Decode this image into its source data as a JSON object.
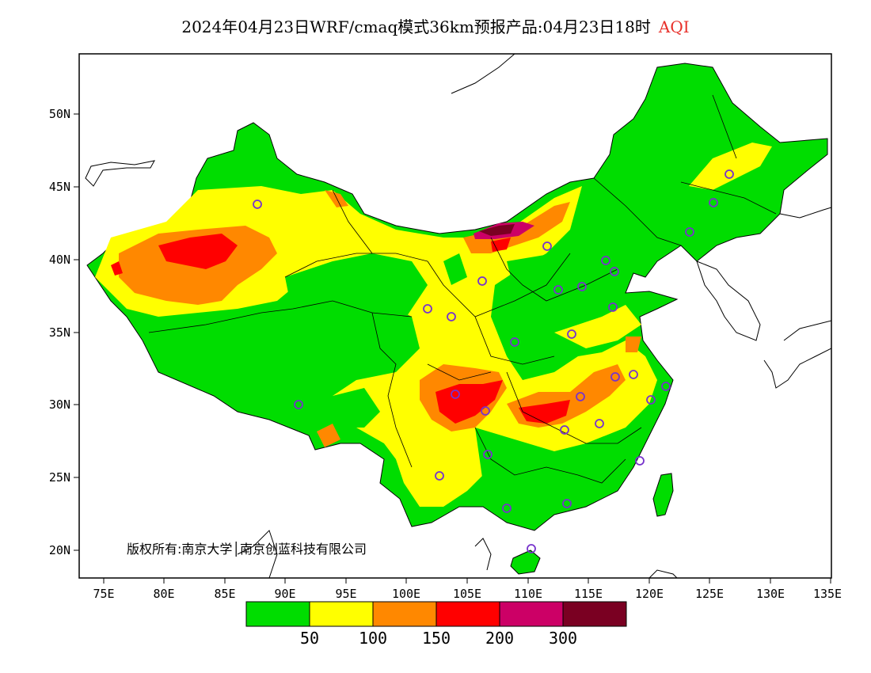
{
  "title": {
    "text": "2024年04月23日WRF/cmaq模式36km预报产品:04月23日18时",
    "variable": "AQI"
  },
  "copyright": "版权所有:南京大学│南京创蓝科技有限公司",
  "axes": {
    "lon_labels": [
      "75E",
      "80E",
      "85E",
      "90E",
      "95E",
      "100E",
      "105E",
      "110E",
      "115E",
      "120E",
      "125E",
      "130E",
      "135E"
    ],
    "lat_labels": [
      "50N",
      "45N",
      "40N",
      "35N",
      "30N",
      "25N",
      "20N"
    ]
  },
  "legend": {
    "colors": [
      "#00dd00",
      "#ffff00",
      "#ff8800",
      "#ff0000",
      "#cc0066",
      "#7a0022"
    ],
    "labels": [
      "50",
      "100",
      "150",
      "200",
      "300"
    ]
  },
  "colors": {
    "good": "#00dd00",
    "moderate": "#ffff00",
    "usg": "#ff8800",
    "unhealthy": "#ff0000",
    "very_unhealthy": "#cc0066",
    "hazardous": "#7a0022",
    "title_accent": "#e8302a",
    "station_marker": "#7733cc"
  }
}
